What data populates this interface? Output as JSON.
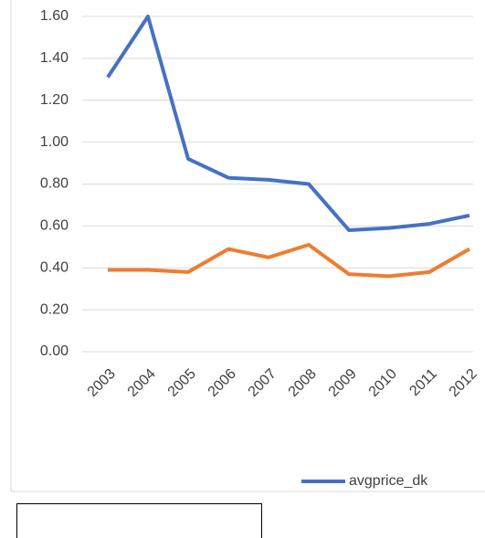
{
  "chart_data": {
    "type": "line",
    "categories": [
      "2003",
      "2004",
      "2005",
      "2006",
      "2007",
      "2008",
      "2009",
      "2010",
      "2011",
      "2012"
    ],
    "series": [
      {
        "name": "avgprice_dk",
        "color": "#4472c4",
        "values": [
          1.31,
          1.6,
          0.92,
          0.83,
          0.82,
          0.8,
          0.58,
          0.59,
          0.61,
          0.65
        ]
      },
      {
        "color": "#ed7d31",
        "values": [
          0.39,
          0.39,
          0.38,
          0.49,
          0.45,
          0.51,
          0.37,
          0.36,
          0.38,
          0.49
        ]
      }
    ],
    "ylim": [
      0,
      1.6
    ],
    "yticks": [
      {
        "value": 0,
        "label": "0.00"
      },
      {
        "value": 0.2,
        "label": "0.20"
      },
      {
        "value": 0.4,
        "label": "0.40"
      },
      {
        "value": 0.6,
        "label": "0.60"
      },
      {
        "value": 0.8,
        "label": "0.80"
      },
      {
        "value": 1.0,
        "label": "1.00"
      },
      {
        "value": 1.2,
        "label": "1.20"
      },
      {
        "value": 1.4,
        "label": "1.40"
      },
      {
        "value": 1.6,
        "label": "1.60"
      }
    ],
    "grid": true,
    "legend": "bottom"
  }
}
